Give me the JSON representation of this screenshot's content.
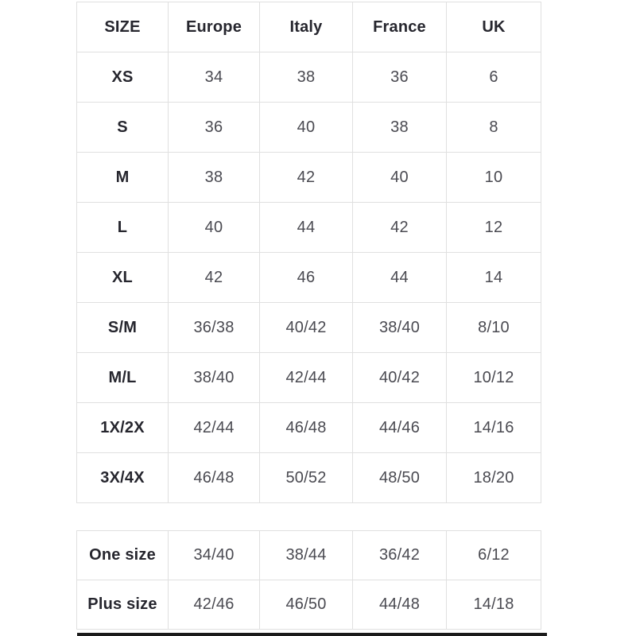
{
  "size_guide": {
    "conversion_table": {
      "columns": [
        "SIZE",
        "Europe",
        "Italy",
        "France",
        "UK"
      ],
      "rows": [
        {
          "label": "XS",
          "values": [
            "34",
            "38",
            "36",
            "6"
          ]
        },
        {
          "label": "S",
          "values": [
            "36",
            "40",
            "38",
            "8"
          ]
        },
        {
          "label": "M",
          "values": [
            "38",
            "42",
            "40",
            "10"
          ]
        },
        {
          "label": "L",
          "values": [
            "40",
            "44",
            "42",
            "12"
          ]
        },
        {
          "label": "XL",
          "values": [
            "42",
            "46",
            "44",
            "14"
          ]
        },
        {
          "label": "S/M",
          "values": [
            "36/38",
            "40/42",
            "38/40",
            "8/10"
          ]
        },
        {
          "label": "M/L",
          "values": [
            "38/40",
            "42/44",
            "40/42",
            "10/12"
          ]
        },
        {
          "label": "1X/2X",
          "values": [
            "42/44",
            "46/48",
            "44/46",
            "14/16"
          ]
        },
        {
          "label": "3X/4X",
          "values": [
            "46/48",
            "50/52",
            "48/50",
            "18/20"
          ]
        }
      ]
    },
    "special_sizes_table": {
      "rows": [
        {
          "label": "One size",
          "values": [
            "34/40",
            "38/44",
            "36/42",
            "6/12"
          ]
        },
        {
          "label": "Plus size",
          "values": [
            "42/46",
            "46/50",
            "44/48",
            "14/18"
          ]
        }
      ]
    },
    "colors": {
      "background": "#ffffff",
      "border": "#e0e0e0",
      "label_text": "#26262e",
      "value_text": "#4a4a51",
      "cutoff_bar": "#1b1b1b"
    }
  }
}
